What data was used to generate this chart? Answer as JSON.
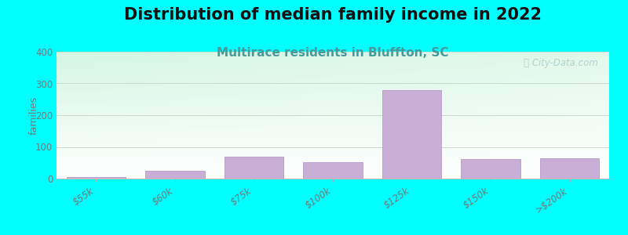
{
  "title": "Distribution of median family income in 2022",
  "subtitle": "Multirace residents in Bluffton, SC",
  "categories": [
    "$55k",
    "$60k",
    "$75k",
    "$100k",
    "$125k",
    "$150k",
    ">$200k"
  ],
  "values": [
    5,
    25,
    70,
    52,
    280,
    62,
    65
  ],
  "bar_color": "#c9aed6",
  "bar_edge_color": "#b090c0",
  "background_color": "#00ffff",
  "plot_bg_topleft": "#cceedd",
  "plot_bg_right": "#f5f5f5",
  "ylabel": "families",
  "ylim": [
    0,
    400
  ],
  "yticks": [
    0,
    100,
    200,
    300,
    400
  ],
  "title_fontsize": 15,
  "subtitle_fontsize": 11,
  "subtitle_color": "#4a9999",
  "watermark": "ⓘ City-Data.com",
  "watermark_color": "#aacccc"
}
